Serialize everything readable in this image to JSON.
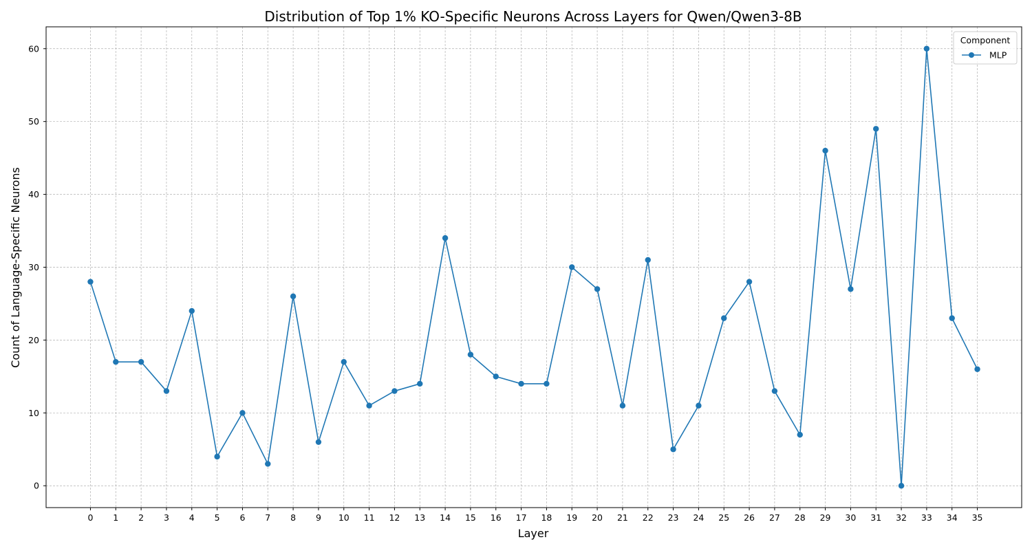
{
  "chart_data": {
    "type": "line",
    "title": "Distribution of Top 1% KO-Specific Neurons Across Layers for Qwen/Qwen3-8B",
    "xlabel": "Layer",
    "ylabel": "Count of Language-Specific Neurons",
    "x": [
      0,
      1,
      2,
      3,
      4,
      5,
      6,
      7,
      8,
      9,
      10,
      11,
      12,
      13,
      14,
      15,
      16,
      17,
      18,
      19,
      20,
      21,
      22,
      23,
      24,
      25,
      26,
      27,
      28,
      29,
      30,
      31,
      32,
      33,
      34,
      35
    ],
    "series": [
      {
        "name": "MLP",
        "color": "#1f77b4",
        "marker": "circle",
        "values": [
          28,
          17,
          17,
          13,
          24,
          4,
          10,
          3,
          26,
          6,
          17,
          11,
          13,
          14,
          34,
          18,
          15,
          14,
          14,
          30,
          27,
          11,
          31,
          5,
          11,
          23,
          28,
          13,
          7,
          46,
          27,
          49,
          0,
          60,
          23,
          16
        ]
      }
    ],
    "xlim": [
      -1.75,
      36.75
    ],
    "ylim": [
      -3,
      63
    ],
    "yticks": [
      0,
      10,
      20,
      30,
      40,
      50,
      60
    ],
    "grid": true,
    "legend": {
      "title": "Component",
      "placement": "top-right"
    }
  }
}
